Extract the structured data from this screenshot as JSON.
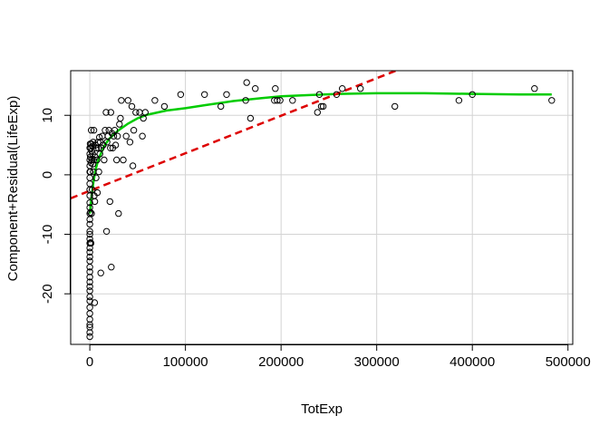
{
  "chart_data": {
    "type": "scatter",
    "title": "",
    "xlabel": "TotExp",
    "ylabel": "Component+Residual(LifeExp)",
    "xlim": [
      -20000,
      505000
    ],
    "ylim": [
      -28.5,
      17.5
    ],
    "grid": true,
    "x_ticks": [
      0,
      100000,
      200000,
      300000,
      400000,
      500000
    ],
    "x_tick_labels": [
      "0",
      "100000",
      "200000",
      "300000",
      "400000",
      "500000"
    ],
    "y_ticks": [
      -20,
      -10,
      0,
      10
    ],
    "y_tick_labels": [
      "-20",
      "-10",
      "0",
      "10"
    ],
    "colors": {
      "points": "#000000",
      "fit_line": "#dd0000",
      "smooth_line": "#00cc00",
      "grid": "#d3d3d3",
      "frame": "#000000"
    },
    "series": [
      {
        "name": "partial residuals",
        "style": "open-circle",
        "points": [
          [
            0,
            -27.2
          ],
          [
            0,
            -26.5
          ],
          [
            0,
            -25.6
          ],
          [
            0,
            -25.2
          ],
          [
            0,
            -24.3
          ],
          [
            0,
            -23.3
          ],
          [
            0,
            -22.3
          ],
          [
            0,
            -21.2
          ],
          [
            0,
            -20.5
          ],
          [
            0,
            -19.5
          ],
          [
            0,
            -18.8
          ],
          [
            0,
            -18.0
          ],
          [
            0,
            -17.2
          ],
          [
            0,
            -16.3
          ],
          [
            0,
            -15.5
          ],
          [
            0,
            -14.5
          ],
          [
            0,
            -13.8
          ],
          [
            0,
            -13.0
          ],
          [
            0,
            -12.3
          ],
          [
            0,
            -11.5
          ],
          [
            0,
            -10.8
          ],
          [
            0,
            -10.0
          ],
          [
            0,
            -9.5
          ],
          [
            0,
            -8.3
          ],
          [
            0,
            -7.5
          ],
          [
            0,
            -6.5
          ],
          [
            0,
            -5.5
          ],
          [
            0,
            -4.7
          ],
          [
            0,
            -3.5
          ],
          [
            0,
            -2.5
          ],
          [
            0,
            -1.5
          ],
          [
            0,
            -0.5
          ],
          [
            0,
            0.5
          ],
          [
            0,
            1.5
          ],
          [
            0,
            2.5
          ],
          [
            0,
            3.5
          ],
          [
            0,
            4.5
          ],
          [
            400,
            5.2
          ],
          [
            500,
            0.5
          ],
          [
            600,
            3.0
          ],
          [
            700,
            -6.3
          ],
          [
            800,
            -11.4
          ],
          [
            1000,
            4.5
          ],
          [
            1200,
            -11.5
          ],
          [
            1300,
            2.0
          ],
          [
            1500,
            7.5
          ],
          [
            1600,
            5.2
          ],
          [
            1800,
            -6.5
          ],
          [
            2000,
            4.0
          ],
          [
            2200,
            2.5
          ],
          [
            2500,
            -2.5
          ],
          [
            2700,
            4.8
          ],
          [
            2900,
            3.5
          ],
          [
            3200,
            1.8
          ],
          [
            3500,
            5.5
          ],
          [
            3700,
            0.5
          ],
          [
            4000,
            2.5
          ],
          [
            4300,
            7.5
          ],
          [
            4600,
            -3.5
          ],
          [
            5000,
            -21.5
          ],
          [
            5200,
            -4.5
          ],
          [
            5600,
            3.0
          ],
          [
            6000,
            5.0
          ],
          [
            6500,
            -0.5
          ],
          [
            7000,
            4.5
          ],
          [
            7500,
            2.5
          ],
          [
            8000,
            -3.0
          ],
          [
            8500,
            5.5
          ],
          [
            9000,
            4.5
          ],
          [
            9500,
            0.5
          ],
          [
            10000,
            6.3
          ],
          [
            10500,
            3.5
          ],
          [
            11000,
            5.5
          ],
          [
            11500,
            -16.5
          ],
          [
            12000,
            4.5
          ],
          [
            13000,
            6.5
          ],
          [
            14000,
            5.0
          ],
          [
            15000,
            2.5
          ],
          [
            16000,
            7.5
          ],
          [
            17000,
            10.5
          ],
          [
            17500,
            -9.5
          ],
          [
            18000,
            5.5
          ],
          [
            19000,
            6.5
          ],
          [
            20000,
            7.5
          ],
          [
            21000,
            -4.5
          ],
          [
            21500,
            4.5
          ],
          [
            22000,
            10.5
          ],
          [
            22500,
            -15.5
          ],
          [
            23000,
            7.0
          ],
          [
            24000,
            4.5
          ],
          [
            25000,
            6.5
          ],
          [
            26000,
            7.5
          ],
          [
            27000,
            5.0
          ],
          [
            28000,
            2.5
          ],
          [
            29000,
            6.5
          ],
          [
            30000,
            -6.5
          ],
          [
            31000,
            8.5
          ],
          [
            32000,
            9.5
          ],
          [
            33000,
            12.5
          ],
          [
            35000,
            2.5
          ],
          [
            38000,
            6.5
          ],
          [
            40000,
            12.5
          ],
          [
            42000,
            5.5
          ],
          [
            44000,
            11.5
          ],
          [
            45000,
            1.5
          ],
          [
            46000,
            7.5
          ],
          [
            48000,
            10.5
          ],
          [
            52000,
            10.5
          ],
          [
            55000,
            6.5
          ],
          [
            56000,
            9.5
          ],
          [
            58000,
            10.5
          ],
          [
            68000,
            12.5
          ],
          [
            78000,
            11.5
          ],
          [
            95000,
            13.5
          ],
          [
            120000,
            13.5
          ],
          [
            137000,
            11.5
          ],
          [
            143000,
            13.5
          ],
          [
            163000,
            12.5
          ],
          [
            164000,
            15.5
          ],
          [
            168000,
            9.5
          ],
          [
            173000,
            14.5
          ],
          [
            193000,
            12.5
          ],
          [
            194000,
            14.5
          ],
          [
            196000,
            12.5
          ],
          [
            199000,
            12.5
          ],
          [
            212000,
            12.5
          ],
          [
            238000,
            10.5
          ],
          [
            240000,
            13.5
          ],
          [
            242000,
            11.5
          ],
          [
            244000,
            11.5
          ],
          [
            258000,
            13.5
          ],
          [
            264000,
            14.5
          ],
          [
            283000,
            14.5
          ],
          [
            319000,
            11.5
          ],
          [
            386000,
            12.5
          ],
          [
            400000,
            13.5
          ],
          [
            465000,
            14.5
          ],
          [
            483000,
            12.5
          ]
        ]
      },
      {
        "name": "linear fit",
        "style": "dashed",
        "points": [
          [
            -20000,
            -3.95
          ],
          [
            320000,
            17.5
          ]
        ]
      },
      {
        "name": "smooth fit",
        "style": "solid",
        "points": [
          [
            0,
            -6.5
          ],
          [
            2000,
            -3.5
          ],
          [
            4000,
            -1.0
          ],
          [
            6000,
            0.8
          ],
          [
            8000,
            2.0
          ],
          [
            10000,
            3.0
          ],
          [
            15000,
            4.8
          ],
          [
            20000,
            6.0
          ],
          [
            30000,
            7.5
          ],
          [
            40000,
            8.6
          ],
          [
            50000,
            9.5
          ],
          [
            60000,
            10.1
          ],
          [
            80000,
            10.8
          ],
          [
            100000,
            11.2
          ],
          [
            120000,
            11.7
          ],
          [
            150000,
            12.4
          ],
          [
            180000,
            12.9
          ],
          [
            200000,
            13.2
          ],
          [
            230000,
            13.4
          ],
          [
            260000,
            13.6
          ],
          [
            300000,
            13.7
          ],
          [
            350000,
            13.7
          ],
          [
            400000,
            13.6
          ],
          [
            450000,
            13.5
          ],
          [
            483000,
            13.5
          ]
        ]
      }
    ]
  }
}
